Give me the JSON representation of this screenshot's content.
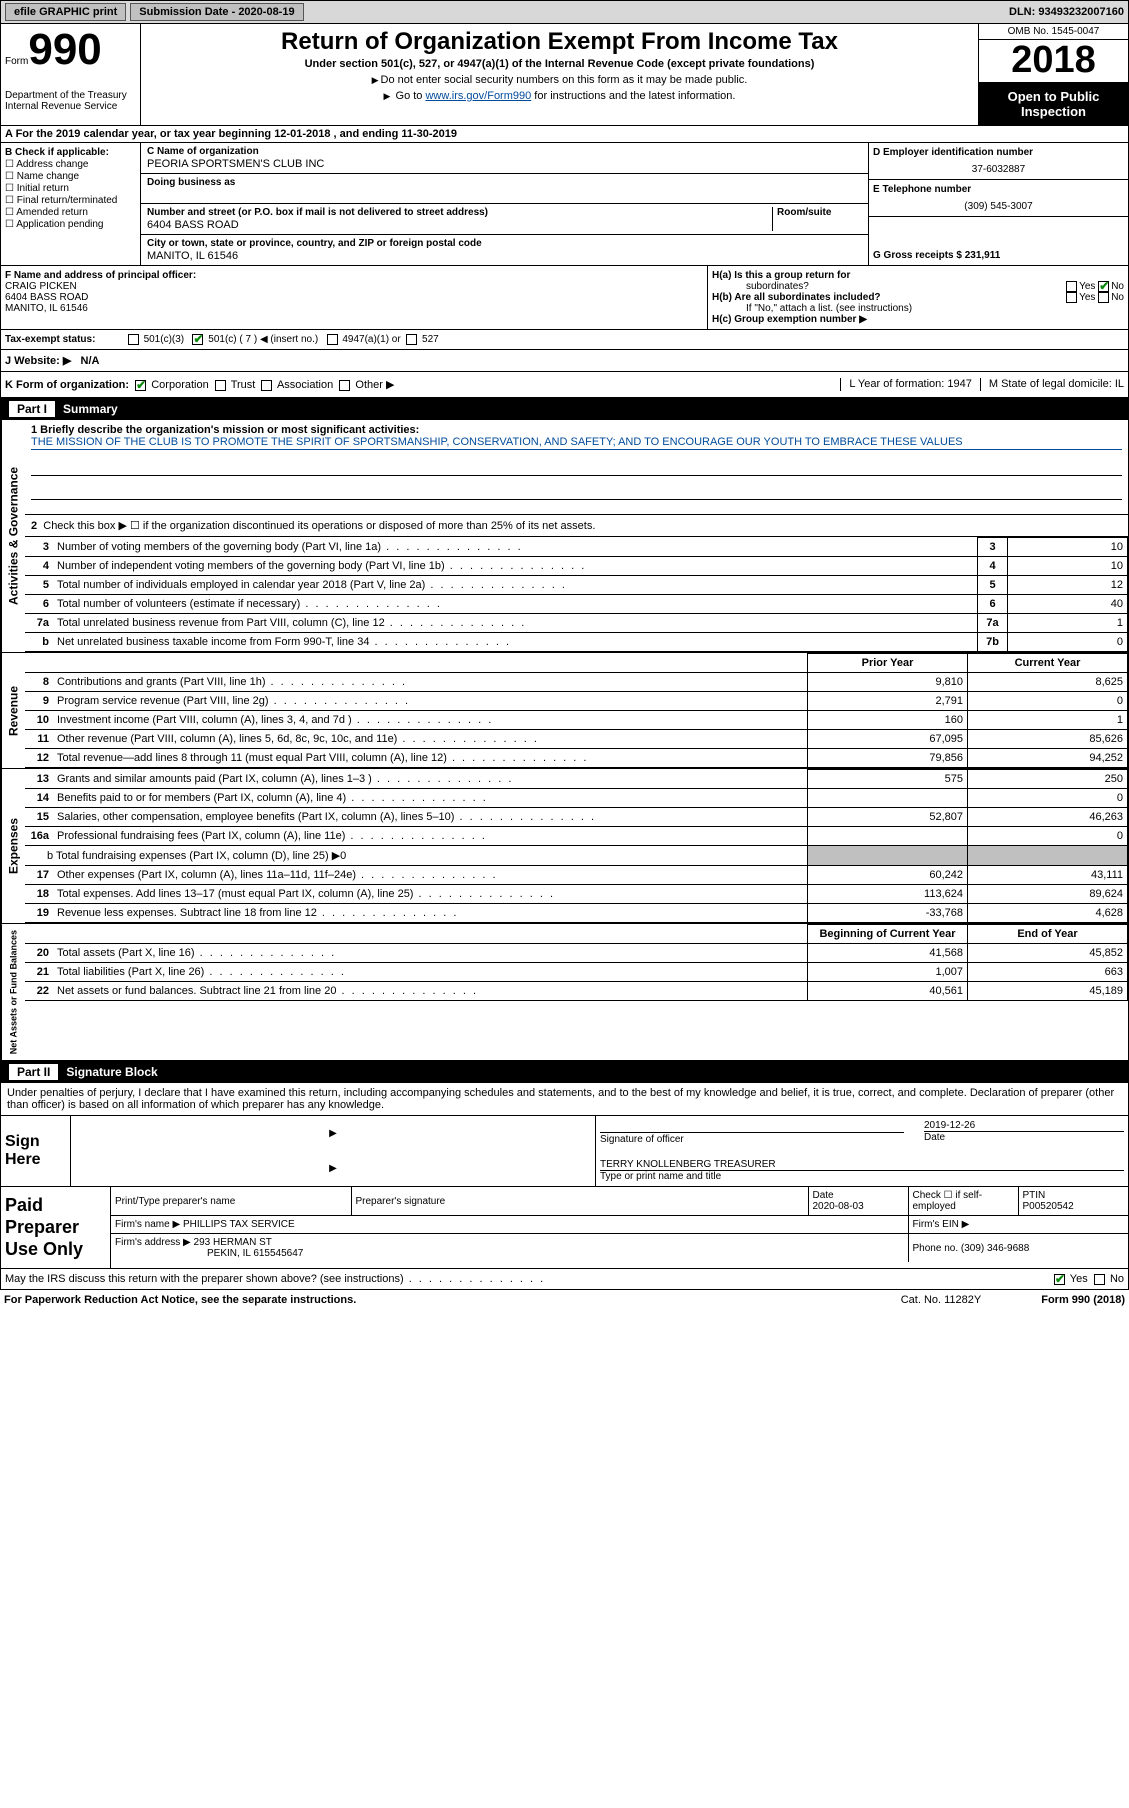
{
  "topbar": {
    "efile": "efile GRAPHIC print",
    "submission_label": "Submission Date - 2020-08-19",
    "dln": "DLN: 93493232007160"
  },
  "header": {
    "form_word": "Form",
    "form_num": "990",
    "dept": "Department of the Treasury\nInternal Revenue Service",
    "title": "Return of Organization Exempt From Income Tax",
    "subtitle": "Under section 501(c), 527, or 4947(a)(1) of the Internal Revenue Code (except private foundations)",
    "note1": "Do not enter social security numbers on this form as it may be made public.",
    "note2_pre": "Go to ",
    "note2_link": "www.irs.gov/Form990",
    "note2_post": " for instructions and the latest information.",
    "omb": "OMB No. 1545-0047",
    "year": "2018",
    "open": "Open to Public Inspection"
  },
  "section_a": "A   For the 2019 calendar year, or tax year beginning 12-01-2018    , and ending 11-30-2019",
  "col_b": {
    "heading": "B Check if applicable:",
    "opts": [
      "Address change",
      "Name change",
      "Initial return",
      "Final return/terminated",
      "Amended return",
      "Application pending"
    ]
  },
  "col_c": {
    "name_label": "C Name of organization",
    "name": "PEORIA SPORTSMEN'S CLUB INC",
    "dba_label": "Doing business as",
    "addr_label": "Number and street (or P.O. box if mail is not delivered to street address)",
    "room_label": "Room/suite",
    "addr": "6404 BASS ROAD",
    "city_label": "City or town, state or province, country, and ZIP or foreign postal code",
    "city": "MANITO, IL  61546"
  },
  "col_d": {
    "ein_label": "D Employer identification number",
    "ein": "37-6032887",
    "phone_label": "E Telephone number",
    "phone": "(309) 545-3007",
    "gross_label": "G Gross receipts $ 231,911"
  },
  "officer": {
    "label": "F  Name and address of principal officer:",
    "name": "CRAIG PICKEN",
    "addr1": "6404 BASS ROAD",
    "addr2": "MANITO, IL  61546"
  },
  "h": {
    "a_label": "H(a)  Is this a group return for",
    "a_sub": "subordinates?",
    "b_label": "H(b)  Are all subordinates included?",
    "b_note": "If \"No,\" attach a list. (see instructions)",
    "c_label": "H(c)  Group exemption number ▶"
  },
  "tax_status": {
    "label": "Tax-exempt status:",
    "c3": "501(c)(3)",
    "c": "501(c) ( 7 ) ◀ (insert no.)",
    "a1": "4947(a)(1) or",
    "s527": "527"
  },
  "website": {
    "label": "J   Website: ▶",
    "val": "N/A"
  },
  "k_row": {
    "label": "K Form of organization:",
    "opts": [
      "Corporation",
      "Trust",
      "Association",
      "Other ▶"
    ],
    "l": "L Year of formation: 1947",
    "m": "M State of legal domicile: IL"
  },
  "part1": {
    "num": "Part I",
    "title": "Summary"
  },
  "mission": {
    "label": "1  Briefly describe the organization's mission or most significant activities:",
    "text": "THE MISSION OF THE CLUB IS TO PROMOTE THE SPIRIT OF SPORTSMANSHIP, CONSERVATION, AND SAFETY; AND TO ENCOURAGE OUR YOUTH TO EMBRACE THESE VALUES"
  },
  "act_gov": {
    "vtab": "Activities & Governance",
    "line2": "Check this box ▶ ☐  if the organization discontinued its operations or disposed of more than 25% of its net assets.",
    "rows": [
      {
        "n": "3",
        "desc": "Number of voting members of the governing body (Part VI, line 1a)",
        "box": "3",
        "val": "10"
      },
      {
        "n": "4",
        "desc": "Number of independent voting members of the governing body (Part VI, line 1b)",
        "box": "4",
        "val": "10"
      },
      {
        "n": "5",
        "desc": "Total number of individuals employed in calendar year 2018 (Part V, line 2a)",
        "box": "5",
        "val": "12"
      },
      {
        "n": "6",
        "desc": "Total number of volunteers (estimate if necessary)",
        "box": "6",
        "val": "40"
      },
      {
        "n": "7a",
        "desc": "Total unrelated business revenue from Part VIII, column (C), line 12",
        "box": "7a",
        "val": "1"
      },
      {
        "n": "b",
        "desc": "Net unrelated business taxable income from Form 990-T, line 34",
        "box": "7b",
        "val": "0"
      }
    ]
  },
  "revenue": {
    "vtab": "Revenue",
    "header_prior": "Prior Year",
    "header_current": "Current Year",
    "rows": [
      {
        "n": "8",
        "desc": "Contributions and grants (Part VIII, line 1h)",
        "prior": "9,810",
        "curr": "8,625"
      },
      {
        "n": "9",
        "desc": "Program service revenue (Part VIII, line 2g)",
        "prior": "2,791",
        "curr": "0"
      },
      {
        "n": "10",
        "desc": "Investment income (Part VIII, column (A), lines 3, 4, and 7d )",
        "prior": "160",
        "curr": "1"
      },
      {
        "n": "11",
        "desc": "Other revenue (Part VIII, column (A), lines 5, 6d, 8c, 9c, 10c, and 11e)",
        "prior": "67,095",
        "curr": "85,626"
      },
      {
        "n": "12",
        "desc": "Total revenue—add lines 8 through 11 (must equal Part VIII, column (A), line 12)",
        "prior": "79,856",
        "curr": "94,252"
      }
    ]
  },
  "expenses": {
    "vtab": "Expenses",
    "rows": [
      {
        "n": "13",
        "desc": "Grants and similar amounts paid (Part IX, column (A), lines 1–3 )",
        "prior": "575",
        "curr": "250"
      },
      {
        "n": "14",
        "desc": "Benefits paid to or for members (Part IX, column (A), line 4)",
        "prior": "",
        "curr": "0"
      },
      {
        "n": "15",
        "desc": "Salaries, other compensation, employee benefits (Part IX, column (A), lines 5–10)",
        "prior": "52,807",
        "curr": "46,263"
      },
      {
        "n": "16a",
        "desc": "Professional fundraising fees (Part IX, column (A), line 11e)",
        "prior": "",
        "curr": "0"
      }
    ],
    "line_b": "b  Total fundraising expenses (Part IX, column (D), line 25) ▶0",
    "rows2": [
      {
        "n": "17",
        "desc": "Other expenses (Part IX, column (A), lines 11a–11d, 11f–24e)",
        "prior": "60,242",
        "curr": "43,111"
      },
      {
        "n": "18",
        "desc": "Total expenses. Add lines 13–17 (must equal Part IX, column (A), line 25)",
        "prior": "113,624",
        "curr": "89,624"
      },
      {
        "n": "19",
        "desc": "Revenue less expenses. Subtract line 18 from line 12",
        "prior": "-33,768",
        "curr": "4,628"
      }
    ]
  },
  "netassets": {
    "vtab": "Net Assets or Fund Balances",
    "header_begin": "Beginning of Current Year",
    "header_end": "End of Year",
    "rows": [
      {
        "n": "20",
        "desc": "Total assets (Part X, line 16)",
        "prior": "41,568",
        "curr": "45,852"
      },
      {
        "n": "21",
        "desc": "Total liabilities (Part X, line 26)",
        "prior": "1,007",
        "curr": "663"
      },
      {
        "n": "22",
        "desc": "Net assets or fund balances. Subtract line 21 from line 20",
        "prior": "40,561",
        "curr": "45,189"
      }
    ]
  },
  "part2": {
    "num": "Part II",
    "title": "Signature Block"
  },
  "sig_declaration": "Under penalties of perjury, I declare that I have examined this return, including accompanying schedules and statements, and to the best of my knowledge and belief, it is true, correct, and complete. Declaration of preparer (other than officer) is based on all information of which preparer has any knowledge.",
  "sign": {
    "label": "Sign Here",
    "sig_label": "Signature of officer",
    "date_label": "Date",
    "date": "2019-12-26",
    "name": "TERRY KNOLLENBERG  TREASURER",
    "name_label": "Type or print name and title"
  },
  "preparer": {
    "label": "Paid Preparer Use Only",
    "col_name": "Print/Type preparer's name",
    "col_sig": "Preparer's signature",
    "col_date": "Date",
    "date": "2020-08-03",
    "col_check": "Check ☐ if self-employed",
    "col_ptin": "PTIN",
    "ptin": "P00520542",
    "firm_label": "Firm's name    ▶",
    "firm": "PHILLIPS TAX SERVICE",
    "ein_label": "Firm's EIN ▶",
    "addr_label": "Firm's address ▶",
    "addr1": "293 HERMAN ST",
    "addr2": "PEKIN, IL  615545647",
    "phone_label": "Phone no. (309) 346-9688"
  },
  "discuss": {
    "q": "May the IRS discuss this return with the preparer shown above? (see instructions)",
    "yes": "Yes",
    "no": "No"
  },
  "footer": {
    "left": "For Paperwork Reduction Act Notice, see the separate instructions.",
    "mid": "Cat. No. 11282Y",
    "right": "Form 990 (2018)"
  }
}
